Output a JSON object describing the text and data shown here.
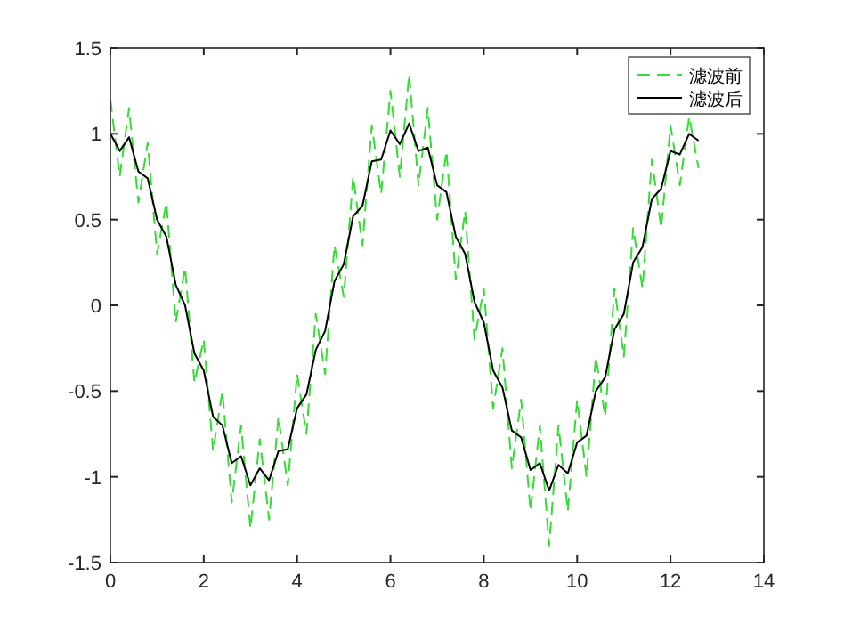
{
  "chart_data": {
    "type": "line",
    "x": [
      0,
      0.2,
      0.4,
      0.6,
      0.8,
      1.0,
      1.2,
      1.4,
      1.6,
      1.8,
      2.0,
      2.2,
      2.4,
      2.6,
      2.8,
      3.0,
      3.2,
      3.4,
      3.6,
      3.8,
      4.0,
      4.2,
      4.4,
      4.6,
      4.8,
      5.0,
      5.2,
      5.4,
      5.6,
      5.8,
      6.0,
      6.2,
      6.4,
      6.6,
      6.8,
      7.0,
      7.2,
      7.4,
      7.6,
      7.8,
      8.0,
      8.2,
      8.4,
      8.6,
      8.8,
      9.0,
      9.2,
      9.4,
      9.6,
      9.8,
      10.0,
      10.2,
      10.4,
      10.6,
      10.8,
      11.0,
      11.2,
      11.4,
      11.6,
      11.8,
      12.0,
      12.2,
      12.4,
      12.6
    ],
    "series": [
      {
        "name": "滤波前",
        "color": "#33dd33",
        "line_style": "dashed",
        "values": [
          1.2,
          0.75,
          1.15,
          0.6,
          0.95,
          0.3,
          0.6,
          -0.1,
          0.22,
          -0.45,
          -0.2,
          -0.85,
          -0.5,
          -1.15,
          -0.7,
          -1.3,
          -0.78,
          -1.25,
          -0.65,
          -1.05,
          -0.4,
          -0.75,
          -0.05,
          -0.4,
          0.35,
          0.05,
          0.75,
          0.35,
          1.05,
          0.65,
          1.25,
          0.75,
          1.35,
          0.7,
          1.15,
          0.5,
          0.9,
          0.15,
          0.55,
          -0.2,
          0.1,
          -0.6,
          -0.25,
          -0.95,
          -0.55,
          -1.2,
          -0.7,
          -1.4,
          -0.7,
          -1.2,
          -0.55,
          -1.0,
          -0.3,
          -0.65,
          0.1,
          -0.3,
          0.45,
          0.1,
          0.85,
          0.45,
          1.05,
          0.7,
          1.1,
          0.8
        ]
      },
      {
        "name": "滤波后",
        "color": "#000000",
        "line_style": "solid",
        "values": [
          1.0,
          0.9,
          0.98,
          0.78,
          0.74,
          0.5,
          0.4,
          0.12,
          0.0,
          -0.28,
          -0.38,
          -0.65,
          -0.7,
          -0.92,
          -0.88,
          -1.05,
          -0.95,
          -1.02,
          -0.85,
          -0.84,
          -0.6,
          -0.52,
          -0.26,
          -0.15,
          0.14,
          0.24,
          0.52,
          0.58,
          0.84,
          0.85,
          1.02,
          0.94,
          1.06,
          0.9,
          0.92,
          0.7,
          0.66,
          0.4,
          0.3,
          0.02,
          -0.1,
          -0.38,
          -0.48,
          -0.73,
          -0.77,
          -0.96,
          -0.92,
          -1.08,
          -0.93,
          -0.98,
          -0.8,
          -0.76,
          -0.5,
          -0.42,
          -0.14,
          -0.05,
          0.25,
          0.34,
          0.62,
          0.68,
          0.9,
          0.88,
          1.0,
          0.96
        ]
      }
    ],
    "xlim": [
      0,
      14
    ],
    "xticks": [
      0,
      2,
      4,
      6,
      8,
      10,
      12,
      14
    ],
    "ylim": [
      -1.5,
      1.5
    ],
    "yticks": [
      -1.5,
      -1,
      -0.5,
      0,
      0.5,
      1,
      1.5
    ],
    "grid": false,
    "legend": "top right"
  }
}
